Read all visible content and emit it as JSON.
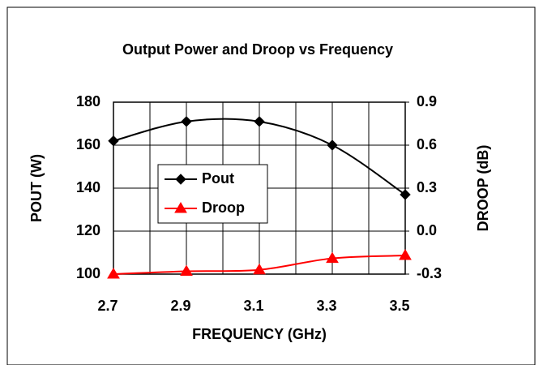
{
  "chart_data": {
    "type": "line",
    "title": "Output Power and Droop vs Frequency",
    "x_label": "FREQUENCY (GHz)",
    "y_label": "POUT (W)",
    "y2_label": "DROOP (dB)",
    "x": [
      2.7,
      2.9,
      3.1,
      3.3,
      3.5
    ],
    "series": [
      {
        "name": "Pout",
        "color": "#000000",
        "marker": "diamond",
        "values": [
          162,
          171,
          171,
          160,
          137
        ]
      },
      {
        "name": "Droop",
        "color": "#ff0000",
        "marker": "triangle",
        "axis": "y2",
        "values": [
          -0.3,
          -0.28,
          -0.27,
          -0.19,
          -0.17
        ]
      }
    ],
    "xlim": [
      2.7,
      3.5
    ],
    "xticks": [
      2.7,
      2.9,
      3.1,
      3.3,
      3.5
    ],
    "xminor": [
      2.8,
      3.0,
      3.2,
      3.4
    ],
    "ylim": [
      100,
      180
    ],
    "yticks": [
      100,
      120,
      140,
      160,
      180
    ],
    "y2lim": [
      -0.3,
      0.9
    ],
    "y2ticks": [
      {
        "value": -0.3,
        "label": "-0.3"
      },
      {
        "value": 0,
        "label": "0.0"
      },
      {
        "value": 0.3,
        "label": "0.3"
      },
      {
        "value": 0.6,
        "label": "0.6"
      },
      {
        "value": 0.9,
        "label": "0.9"
      }
    ],
    "grid": true,
    "smooth": true,
    "legend": "center-left"
  }
}
